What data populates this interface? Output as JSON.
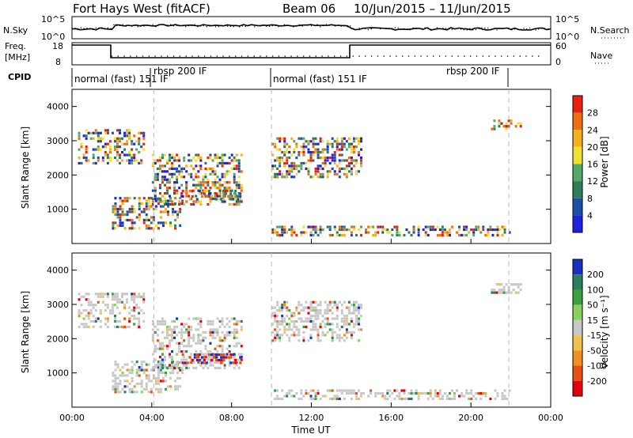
{
  "header": {
    "title": "Fort Hays West (fitACF)",
    "beam": "Beam 06",
    "date_range": "10/Jun/2015 – 11/Jun/2015"
  },
  "top_panels": {
    "nsky_label": "N.Sky",
    "nsky_ticks": [
      "10^5",
      "10^0"
    ],
    "nsearch_label": "N.Search",
    "nsearch_ticks": [
      "10^5",
      "10^0"
    ],
    "freq_label_1": "Freq.",
    "freq_label_2": "[MHz]",
    "freq_ticks": [
      "18",
      "8"
    ],
    "nave_label": "Nave",
    "nave_ticks": [
      "60",
      "0"
    ],
    "cpid_label": "CPID",
    "cpid_segments": [
      "normal (fast) 151 IF",
      "rbsp 200 IF",
      "normal (fast) 151 IF",
      "rbsp 200 IF"
    ]
  },
  "chart_data": [
    {
      "type": "heatmap",
      "name": "Power",
      "ylabel": "Slant Range [km]",
      "yticks": [
        "1000",
        "2000",
        "3000",
        "4000"
      ],
      "colorbar_label": "Power [dB]",
      "colorbar_ticks": [
        "4",
        "8",
        "12",
        "16",
        "20",
        "24",
        "28"
      ],
      "colors": [
        "#2020e0",
        "#1e4fa8",
        "#2e7d5a",
        "#55a86a",
        "#f0e030",
        "#f5b020",
        "#f07010",
        "#e82010"
      ],
      "echo_regions_time_h_range_km": [
        [
          0.3,
          3.6,
          2300,
          3300
        ],
        [
          2.0,
          5.5,
          400,
          1300
        ],
        [
          4.0,
          8.5,
          1100,
          2600
        ],
        [
          5.5,
          8.5,
          1250,
          1550
        ],
        [
          10.0,
          14.5,
          1900,
          3100
        ],
        [
          10.0,
          22.0,
          200,
          500
        ],
        [
          21.0,
          22.5,
          3300,
          3600
        ]
      ]
    },
    {
      "type": "heatmap",
      "name": "Velocity",
      "ylabel": "Slant Range [km]",
      "yticks": [
        "1000",
        "2000",
        "3000",
        "4000"
      ],
      "colorbar_label": "Velocity [m s⁻¹]",
      "colorbar_ticks": [
        "200",
        "100",
        "50",
        "15",
        "-15",
        "-50",
        "-100",
        "-200"
      ],
      "colors": [
        "#1a30c0",
        "#2e7d5a",
        "#3aa040",
        "#8ad060",
        "#c8c8c8",
        "#f0c050",
        "#f09020",
        "#e85010",
        "#e00010"
      ],
      "x_ticks": [
        "00:00",
        "04:00",
        "08:00",
        "12:00",
        "16:00",
        "20:00",
        "00:00"
      ],
      "x_range_hours": [
        0,
        24
      ],
      "xlabel": "Time UT"
    }
  ]
}
